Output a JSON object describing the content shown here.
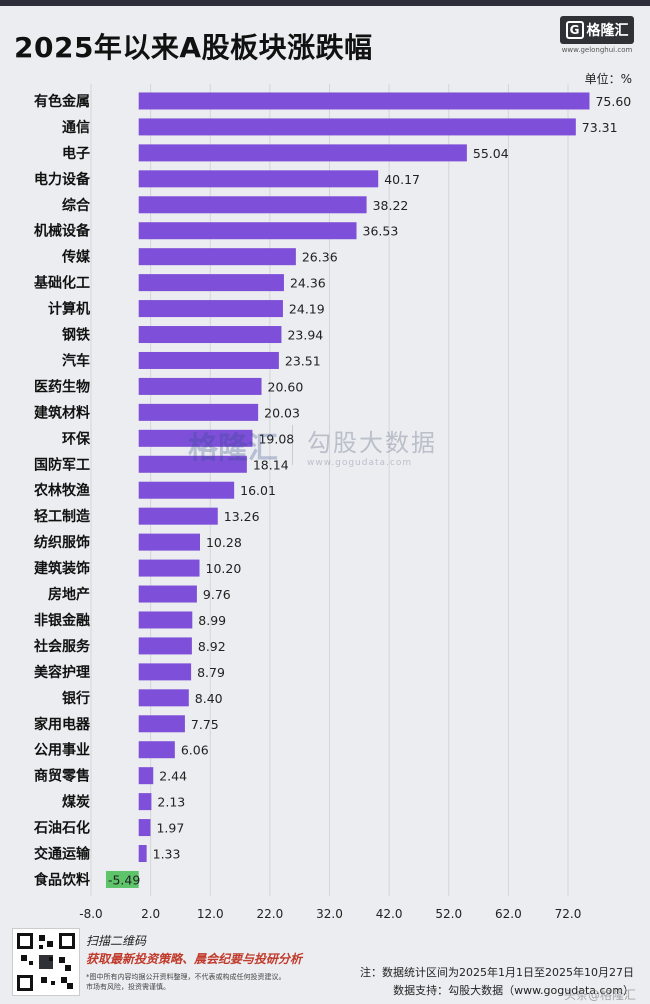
{
  "header": {
    "title": "2025年以来A股板块涨跌幅",
    "logo_text": "格隆汇",
    "logo_mark": "G",
    "logo_url": "www.gelonghui.com",
    "unit": "单位：%"
  },
  "chart_data": {
    "type": "bar",
    "orientation": "horizontal",
    "title": "2025年以来A股板块涨跌幅",
    "unit": "%",
    "categories": [
      "有色金属",
      "通信",
      "电子",
      "电力设备",
      "综合",
      "机械设备",
      "传媒",
      "基础化工",
      "计算机",
      "钢铁",
      "汽车",
      "医药生物",
      "建筑材料",
      "环保",
      "国防军工",
      "农林牧渔",
      "轻工制造",
      "纺织服饰",
      "建筑装饰",
      "房地产",
      "非银金融",
      "社会服务",
      "美容护理",
      "银行",
      "家用电器",
      "公用事业",
      "商贸零售",
      "煤炭",
      "石油石化",
      "交通运输",
      "食品饮料"
    ],
    "values": [
      75.6,
      73.31,
      55.04,
      40.17,
      38.22,
      36.53,
      26.36,
      24.36,
      24.19,
      23.94,
      23.51,
      20.6,
      20.03,
      19.08,
      18.14,
      16.01,
      13.26,
      10.28,
      10.2,
      9.76,
      8.99,
      8.92,
      8.79,
      8.4,
      7.75,
      6.06,
      2.44,
      2.13,
      1.97,
      1.33,
      -5.49
    ],
    "value_labels": [
      "75.60",
      "73.31",
      "55.04",
      "40.17",
      "38.22",
      "36.53",
      "26.36",
      "24.36",
      "24.19",
      "23.94",
      "23.51",
      "20.60",
      "20.03",
      "19.08",
      "18.14",
      "16.01",
      "13.26",
      "10.28",
      "10.20",
      "9.76",
      "8.99",
      "8.92",
      "8.79",
      "8.40",
      "7.75",
      "6.06",
      "2.44",
      "2.13",
      "1.97",
      "1.33",
      "-5.49"
    ],
    "x_ticks": [
      "-8.0",
      "2.0",
      "12.0",
      "22.0",
      "32.0",
      "42.0",
      "52.0",
      "62.0",
      "72.0"
    ],
    "x_tick_values": [
      -8,
      2,
      12,
      22,
      32,
      42,
      52,
      62,
      72
    ],
    "xlim": [
      -8,
      78
    ],
    "grid": true,
    "colors": {
      "positive": "#7e4fd8",
      "negative": "#5dc46a",
      "grid": "#d3d5da"
    }
  },
  "watermark": {
    "logo": "格隆汇",
    "name": "勾股大数据",
    "url": "www.gogudata.com"
  },
  "footer": {
    "scan_label": "扫描二维码",
    "promo": "获取最新投资策略、晨会纪要与投研分析",
    "disclaimer": "*图中所有内容均据公开资料整理，不代表或构成任何投资建议。市场有风险，投资需谨慎。",
    "note": "注：数据统计区间为2025年1月1日至2025年10月27日",
    "source": "数据支持：勾股大数据（www.gogudata.com）",
    "corner_watermark": "头条@格隆汇"
  }
}
